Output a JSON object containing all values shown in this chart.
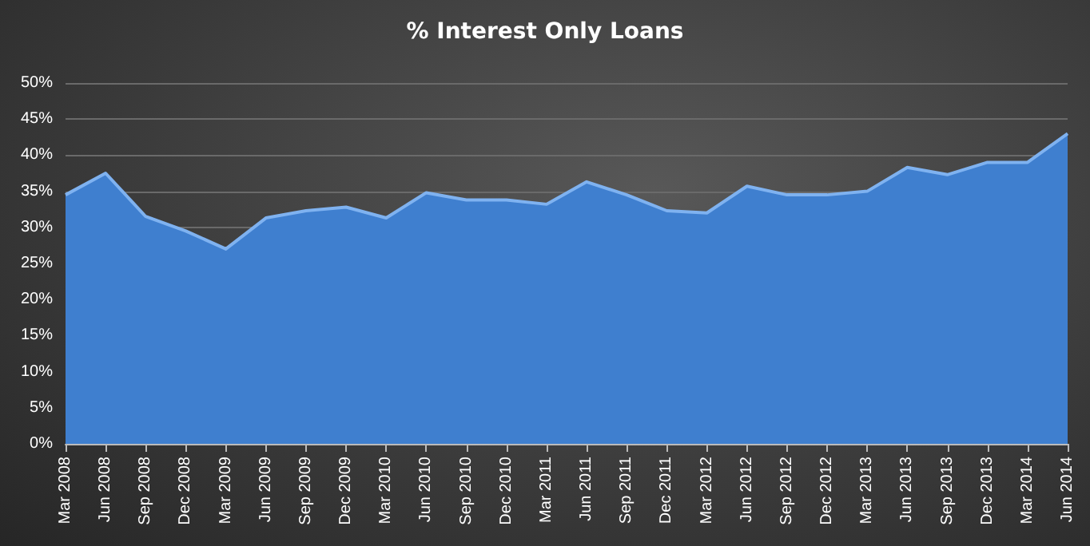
{
  "chart_data": {
    "type": "area",
    "title": "% Interest Only Loans",
    "categories": [
      "Mar 2008",
      "Jun 2008",
      "Sep 2008",
      "Dec 2008",
      "Mar 2009",
      "Jun 2009",
      "Sep 2009",
      "Dec 2009",
      "Mar 2010",
      "Jun 2010",
      "Sep 2010",
      "Dec 2010",
      "Mar 2011",
      "Jun 2011",
      "Sep 2011",
      "Dec 2011",
      "Mar 2012",
      "Jun 2012",
      "Sep 2012",
      "Dec 2012",
      "Mar 2013",
      "Jun 2013",
      "Sep 2013",
      "Dec 2013",
      "Mar 2014",
      "Jun 2014"
    ],
    "series": [
      {
        "color": "#3f7fcf",
        "values": [
          34.5,
          37.5,
          31.5,
          29.5,
          27,
          31.3,
          32.3,
          32.8,
          31.3,
          34.8,
          33.8,
          33.8,
          33.2,
          36.3,
          34.5,
          32.3,
          32,
          35.7,
          34.5,
          34.5,
          35,
          38.3,
          37.3,
          39,
          39,
          43
        ]
      }
    ],
    "ylim": [
      0,
      50
    ],
    "yticks": [
      {
        "value": 0,
        "label": "0%"
      },
      {
        "value": 5,
        "label": "5%"
      },
      {
        "value": 10,
        "label": "10%"
      },
      {
        "value": 15,
        "label": "15%"
      },
      {
        "value": 20,
        "label": "20%"
      },
      {
        "value": 25,
        "label": "25%"
      },
      {
        "value": 30,
        "label": "30%"
      },
      {
        "value": 35,
        "label": "35%"
      },
      {
        "value": 40,
        "label": "40%"
      },
      {
        "value": 45,
        "label": "45%"
      },
      {
        "value": 50,
        "label": "50%"
      }
    ],
    "grid": "y"
  }
}
